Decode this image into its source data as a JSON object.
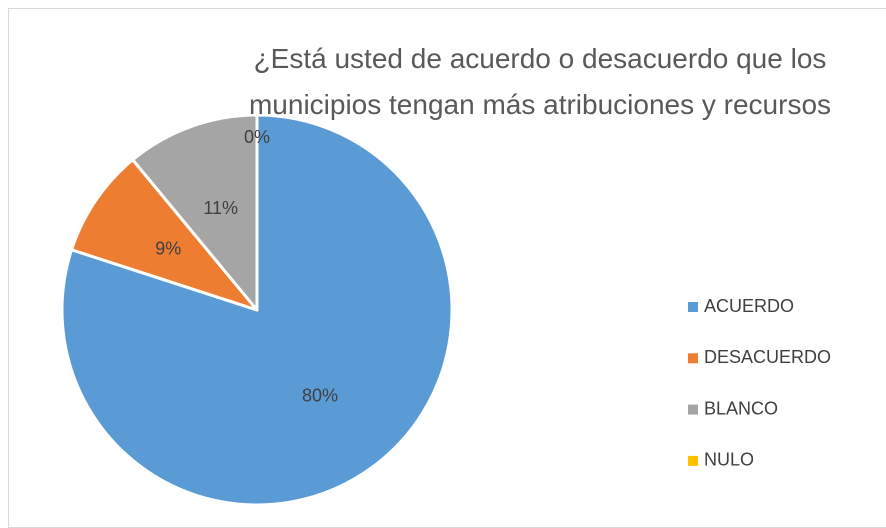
{
  "chart_data": {
    "type": "pie",
    "title": "¿Está usted de acuerdo o desacuerdo que los municipios tengan más atribuciones y recursos",
    "categories": [
      "ACUERDO",
      "DESACUERDO",
      "BLANCO",
      "NULO"
    ],
    "values": [
      80,
      9,
      11,
      0
    ],
    "value_labels": [
      "80%",
      "9%",
      "11%",
      "0%"
    ],
    "colors": [
      "#5b9bd5",
      "#ed7d31",
      "#a5a5a5",
      "#ffc000"
    ],
    "legend": "right"
  }
}
